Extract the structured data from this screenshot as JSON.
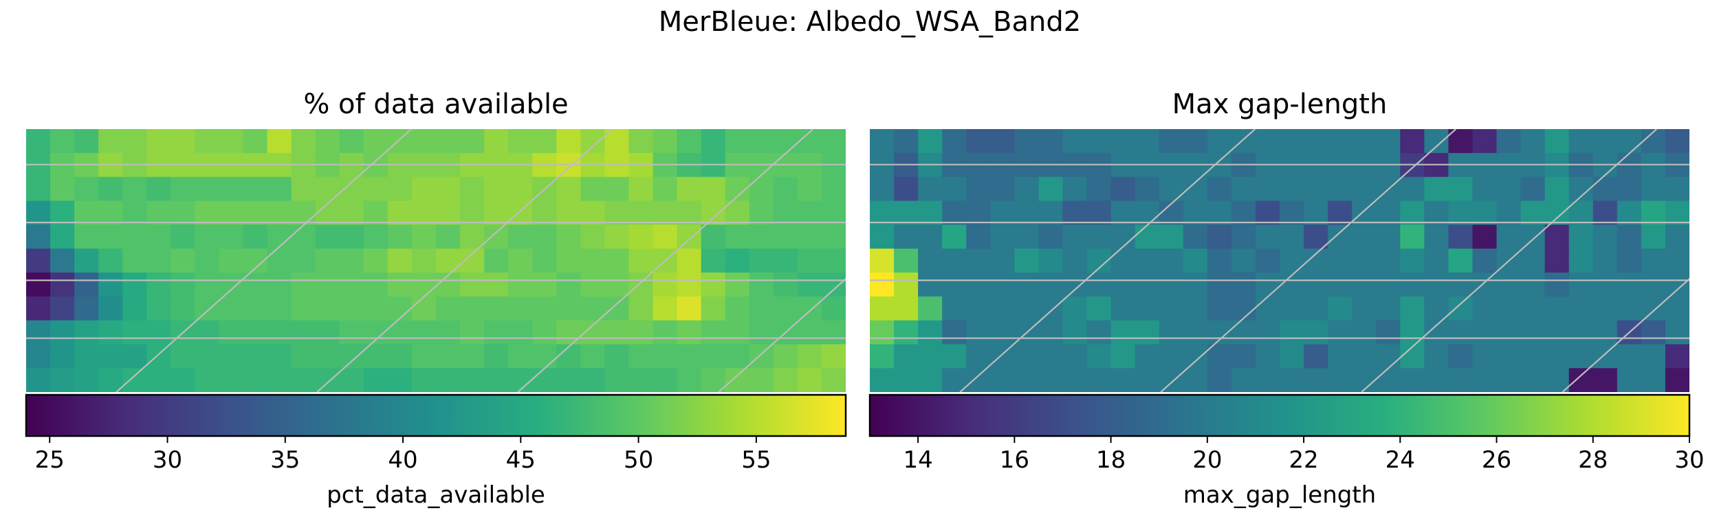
{
  "suptitle": "MerBleue: Albedo_WSA_Band2",
  "chart_data": [
    {
      "type": "heatmap",
      "title": "% of data available",
      "colorbar_label": "pct_data_available",
      "colormap": "viridis",
      "vmin": 24.0,
      "vmax": 58.8,
      "colorbar_ticks": [
        25,
        30,
        35,
        40,
        45,
        50,
        55
      ],
      "rows": 11,
      "cols": 34,
      "values": [
        [
          47,
          49,
          48,
          52,
          52,
          53,
          53,
          52,
          52,
          51,
          55,
          52,
          51,
          50,
          51,
          51,
          51,
          51,
          51,
          53,
          52,
          52,
          55,
          53,
          55,
          52,
          51,
          49,
          47,
          49,
          49,
          49,
          49,
          49
        ],
        [
          47,
          50,
          51,
          53,
          52,
          53,
          53,
          53,
          53,
          53,
          53,
          52,
          51,
          52,
          51,
          52,
          52,
          52,
          53,
          53,
          53,
          55,
          56,
          54,
          55,
          54,
          50,
          48,
          47,
          50,
          50,
          50,
          50,
          49
        ],
        [
          47,
          50,
          49,
          48,
          49,
          48,
          49,
          49,
          49,
          49,
          49,
          52,
          52,
          52,
          52,
          52,
          53,
          53,
          52,
          53,
          53,
          52,
          53,
          51,
          51,
          53,
          51,
          53,
          53,
          51,
          50,
          49,
          50,
          49
        ],
        [
          42,
          46,
          50,
          50,
          49,
          50,
          50,
          51,
          51,
          51,
          51,
          51,
          52,
          52,
          51,
          53,
          53,
          53,
          52,
          53,
          53,
          52,
          53,
          53,
          52,
          52,
          52,
          52,
          53,
          52,
          50,
          49,
          49,
          49
        ],
        [
          38,
          45,
          49,
          49,
          49,
          49,
          48,
          49,
          49,
          48,
          49,
          49,
          48,
          48,
          49,
          50,
          51,
          50,
          52,
          51,
          50,
          50,
          51,
          52,
          53,
          54,
          55,
          53,
          48,
          49,
          49,
          49,
          49,
          49
        ],
        [
          30,
          38,
          44,
          47,
          49,
          49,
          50,
          49,
          50,
          50,
          49,
          49,
          50,
          50,
          51,
          53,
          52,
          53,
          53,
          50,
          51,
          50,
          51,
          51,
          51,
          53,
          53,
          55,
          47,
          46,
          47,
          47,
          48,
          48
        ],
        [
          25,
          29,
          35,
          42,
          45,
          47,
          48,
          49,
          49,
          49,
          49,
          50,
          50,
          50,
          50,
          51,
          51,
          51,
          52,
          52,
          51,
          51,
          50,
          51,
          51,
          52,
          54,
          55,
          53,
          51,
          49,
          48,
          47,
          47
        ],
        [
          28,
          31,
          36,
          41,
          45,
          47,
          48,
          49,
          49,
          49,
          49,
          50,
          50,
          50,
          50,
          50,
          51,
          50,
          50,
          50,
          50,
          50,
          50,
          50,
          50,
          52,
          55,
          57,
          52,
          50,
          49,
          49,
          49,
          48
        ],
        [
          40,
          42,
          44,
          45,
          46,
          46,
          47,
          47,
          48,
          48,
          48,
          48,
          48,
          49,
          49,
          49,
          49,
          49,
          50,
          49,
          49,
          50,
          51,
          51,
          51,
          51,
          50,
          51,
          50,
          50,
          49,
          49,
          49,
          49
        ],
        [
          40,
          42,
          44,
          44,
          44,
          46,
          47,
          47,
          47,
          47,
          47,
          48,
          48,
          48,
          48,
          48,
          49,
          49,
          49,
          48,
          49,
          49,
          48,
          49,
          48,
          49,
          49,
          49,
          49,
          49,
          50,
          51,
          52,
          53
        ],
        [
          42,
          43,
          44,
          45,
          46,
          46,
          46,
          47,
          47,
          47,
          47,
          47,
          47,
          47,
          46,
          46,
          47,
          47,
          47,
          47,
          47,
          47,
          47,
          47,
          48,
          48,
          48,
          49,
          50,
          51,
          51,
          52,
          53,
          52
        ]
      ]
    },
    {
      "type": "heatmap",
      "title": "Max gap-length",
      "colorbar_label": "max_gap_length",
      "colormap": "viridis",
      "vmin": 13.0,
      "vmax": 30.0,
      "colorbar_ticks": [
        14,
        16,
        18,
        20,
        22,
        24,
        26,
        28,
        30
      ],
      "rows": 11,
      "cols": 34,
      "values": [
        [
          20,
          19,
          22,
          19,
          18,
          18,
          19,
          19,
          20,
          20,
          20,
          20,
          19,
          19,
          20,
          20,
          20,
          20,
          20,
          20,
          20,
          20,
          15,
          20,
          14,
          15,
          19,
          20,
          22,
          20,
          20,
          20,
          19,
          18
        ],
        [
          20,
          18,
          21,
          19,
          19,
          19,
          19,
          19,
          19,
          19,
          20,
          20,
          20,
          20,
          20,
          19,
          20,
          20,
          20,
          20,
          20,
          20,
          16,
          15,
          20,
          20,
          20,
          20,
          21,
          19,
          20,
          19,
          20,
          19
        ],
        [
          20,
          17,
          20,
          20,
          19,
          19,
          20,
          22,
          20,
          19,
          18,
          19,
          20,
          20,
          19,
          20,
          20,
          20,
          20,
          20,
          20,
          20,
          20,
          22,
          22,
          20,
          20,
          19,
          22,
          20,
          19,
          19,
          20,
          20
        ],
        [
          22,
          22,
          22,
          19,
          19,
          20,
          20,
          20,
          18,
          18,
          20,
          20,
          19,
          20,
          20,
          19,
          17,
          19,
          20,
          17,
          20,
          20,
          22,
          20,
          21,
          21,
          20,
          22,
          22,
          21,
          17,
          21,
          23,
          22
        ],
        [
          22,
          20,
          20,
          23,
          19,
          20,
          20,
          19,
          20,
          20,
          20,
          22,
          22,
          19,
          18,
          19,
          20,
          20,
          17,
          20,
          20,
          20,
          24,
          20,
          17,
          14,
          20,
          20,
          15,
          21,
          20,
          19,
          22,
          20
        ],
        [
          29,
          25,
          20,
          20,
          20,
          20,
          22,
          21,
          20,
          21,
          20,
          20,
          20,
          21,
          19,
          20,
          19,
          20,
          20,
          20,
          20,
          20,
          21,
          20,
          23,
          19,
          20,
          20,
          15,
          21,
          20,
          19,
          20,
          20
        ],
        [
          30,
          28,
          20,
          20,
          20,
          20,
          20,
          20,
          20,
          20,
          20,
          20,
          20,
          20,
          19,
          19,
          20,
          20,
          20,
          20,
          20,
          20,
          20,
          20,
          20,
          20,
          20,
          20,
          19,
          20,
          20,
          20,
          20,
          20
        ],
        [
          28,
          28,
          25,
          20,
          20,
          20,
          20,
          20,
          21,
          22,
          20,
          20,
          20,
          20,
          19,
          19,
          20,
          20,
          20,
          21,
          20,
          20,
          22,
          20,
          21,
          20,
          20,
          20,
          20,
          20,
          20,
          20,
          20,
          20
        ],
        [
          26,
          24,
          22,
          19,
          20,
          20,
          20,
          20,
          21,
          20,
          22,
          22,
          20,
          20,
          20,
          20,
          20,
          21,
          21,
          20,
          20,
          19,
          22,
          20,
          20,
          20,
          20,
          20,
          20,
          20,
          20,
          17,
          18,
          20
        ],
        [
          24,
          22,
          22,
          22,
          20,
          20,
          20,
          20,
          20,
          21,
          22,
          20,
          20,
          20,
          19,
          19,
          20,
          21,
          18,
          20,
          20,
          20,
          22,
          20,
          19,
          20,
          20,
          20,
          20,
          20,
          20,
          20,
          20,
          15
        ],
        [
          22,
          22,
          22,
          20,
          20,
          20,
          20,
          20,
          20,
          20,
          20,
          20,
          20,
          20,
          19,
          20,
          20,
          20,
          20,
          20,
          20,
          20,
          20,
          20,
          20,
          20,
          20,
          20,
          20,
          14,
          14,
          20,
          20,
          14
        ]
      ]
    }
  ]
}
